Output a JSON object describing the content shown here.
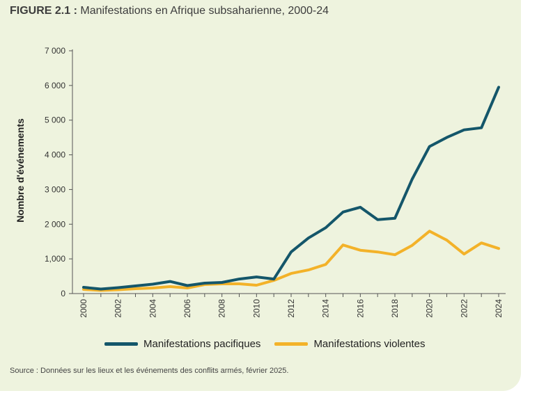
{
  "figure": {
    "number": "FIGURE 2.1",
    "separator": " : ",
    "title": "Manifestations en Afrique subsaharienne, 2000-24"
  },
  "chart_data": {
    "type": "line",
    "title": "Manifestations en Afrique subsaharienne, 2000-24",
    "xlabel": "",
    "ylabel": "Nombre d'événements",
    "x": [
      2000,
      2001,
      2002,
      2003,
      2004,
      2005,
      2006,
      2007,
      2008,
      2009,
      2010,
      2011,
      2012,
      2013,
      2014,
      2015,
      2016,
      2017,
      2018,
      2019,
      2020,
      2021,
      2022,
      2023,
      2024
    ],
    "x_tick_labels": [
      "2000",
      "2002",
      "2004",
      "2006",
      "2008",
      "2010",
      "2012",
      "2014",
      "2016",
      "2018",
      "2020",
      "2022",
      "2024"
    ],
    "x_tick_values": [
      2000,
      2002,
      2004,
      2006,
      2008,
      2010,
      2012,
      2014,
      2016,
      2018,
      2020,
      2022,
      2024
    ],
    "xlim": [
      2000,
      2024
    ],
    "ylim": [
      0,
      7000
    ],
    "y_ticks": [
      0,
      1000,
      2000,
      3000,
      4000,
      5000,
      6000,
      7000
    ],
    "y_tick_labels": [
      "0",
      "1,000",
      "2 000",
      "3 000",
      "4 000",
      "5 000",
      "6 000",
      "7 000"
    ],
    "grid": false,
    "legend_position": "bottom",
    "series": [
      {
        "name": "Manifestations pacifiques",
        "color": "#14566a",
        "values": [
          180,
          130,
          170,
          220,
          270,
          350,
          230,
          300,
          320,
          420,
          480,
          420,
          1200,
          1600,
          1900,
          2350,
          2490,
          2130,
          2170,
          3300,
          4240,
          4500,
          4720,
          4780,
          5950
        ]
      },
      {
        "name": "Manifestations violentes",
        "color": "#f3b229",
        "values": [
          120,
          90,
          110,
          140,
          160,
          200,
          160,
          260,
          280,
          280,
          240,
          380,
          580,
          680,
          840,
          1400,
          1250,
          1200,
          1120,
          1390,
          1800,
          1540,
          1140,
          1460,
          1300
        ]
      }
    ]
  },
  "source": "Source : Données sur les lieux et les événements des conflits armés, février 2025."
}
